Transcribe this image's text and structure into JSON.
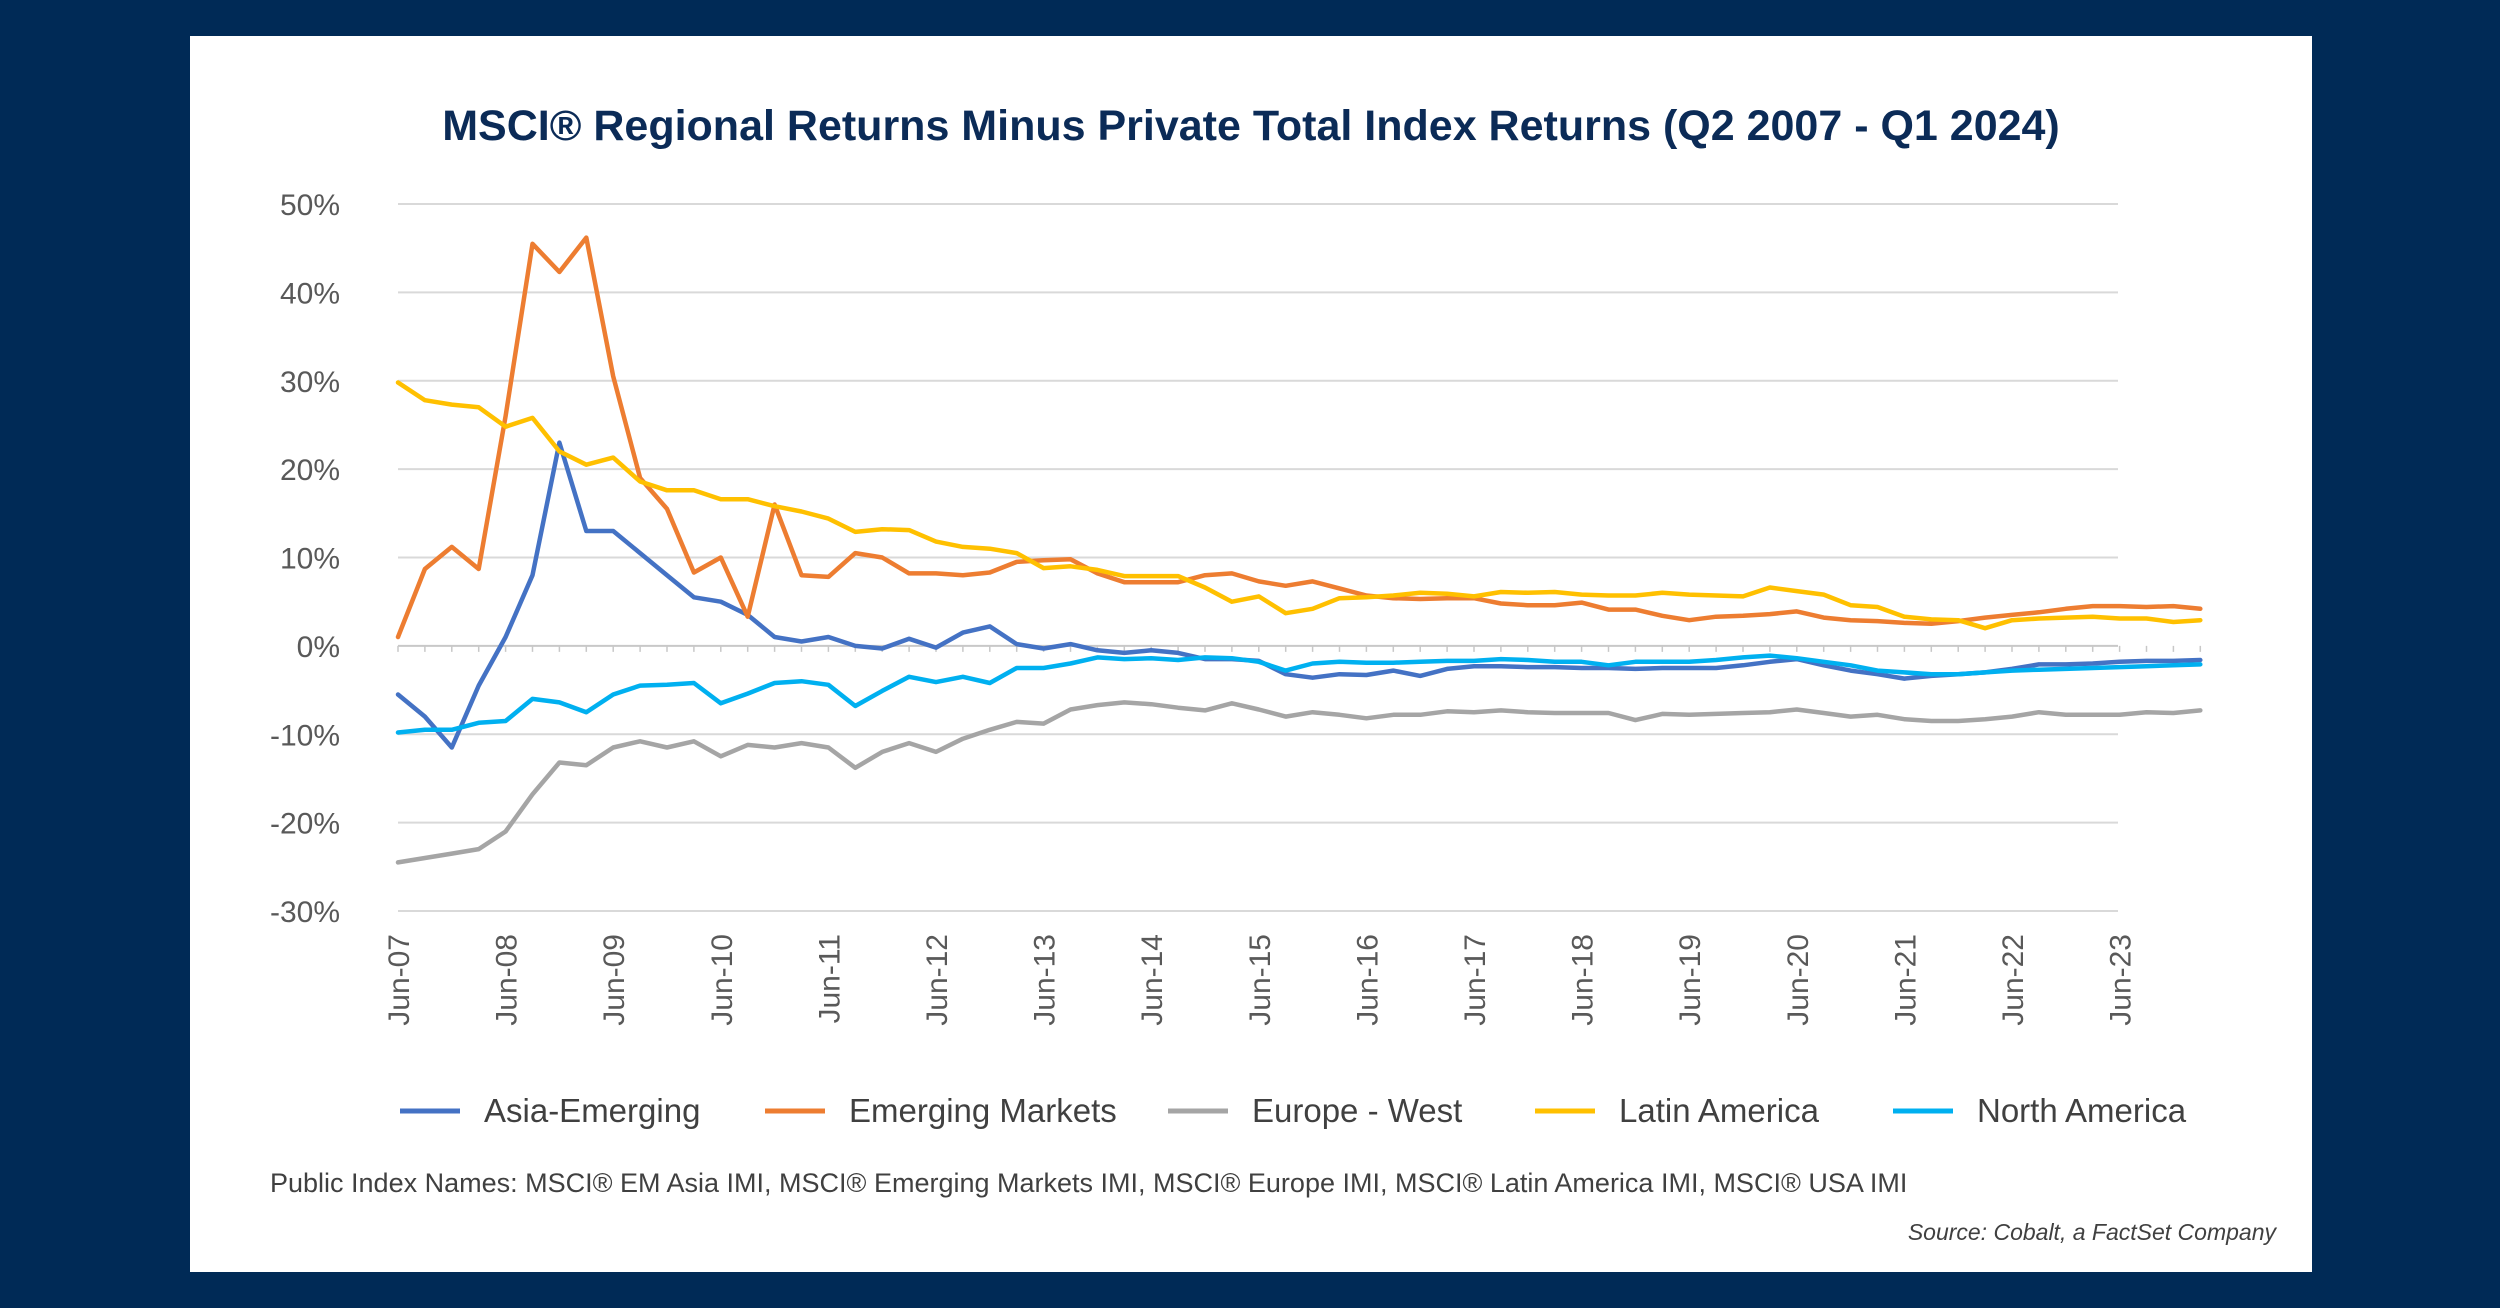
{
  "chart_data": {
    "type": "line",
    "title": "MSCI® Regional Returns Minus Private Total Index Returns (Q2 2007 - Q1 2024)",
    "xlabel": "",
    "ylabel": "",
    "ylim": [
      -30,
      50
    ],
    "y_ticks": [
      {
        "value": 50,
        "label": "50%"
      },
      {
        "value": 40,
        "label": "40%"
      },
      {
        "value": 30,
        "label": "30%"
      },
      {
        "value": 20,
        "label": "20%"
      },
      {
        "value": 10,
        "label": "10%"
      },
      {
        "value": 0,
        "label": "0%"
      },
      {
        "value": -10,
        "label": "-10%"
      },
      {
        "value": -20,
        "label": "-20%"
      },
      {
        "value": -30,
        "label": "-30%"
      }
    ],
    "x_tick_labels": [
      {
        "index": 0,
        "label": "Jun-07"
      },
      {
        "index": 4,
        "label": "Jun-08"
      },
      {
        "index": 8,
        "label": "Jun-09"
      },
      {
        "index": 12,
        "label": "Jun-10"
      },
      {
        "index": 16,
        "label": "Jun-11"
      },
      {
        "index": 20,
        "label": "Jun-12"
      },
      {
        "index": 24,
        "label": "Jun-13"
      },
      {
        "index": 28,
        "label": "Jun-14"
      },
      {
        "index": 32,
        "label": "Jun-15"
      },
      {
        "index": 36,
        "label": "Jun-16"
      },
      {
        "index": 40,
        "label": "Jun-17"
      },
      {
        "index": 44,
        "label": "Jun-18"
      },
      {
        "index": 48,
        "label": "Jun-19"
      },
      {
        "index": 52,
        "label": "Jun-20"
      },
      {
        "index": 56,
        "label": "Jun-21"
      },
      {
        "index": 60,
        "label": "Jun-22"
      },
      {
        "index": 64,
        "label": "Jun-23"
      }
    ],
    "n_points": 68,
    "grid": true,
    "legend": "bottom",
    "series": [
      {
        "name": "Asia-Emerging",
        "color": "#4472c4",
        "values": [
          -5.5,
          -8,
          -11.5,
          -4.5,
          1,
          8,
          23,
          13,
          13,
          10.5,
          8,
          5.5,
          5,
          3.5,
          1,
          0.5,
          1,
          0,
          -0.3,
          0.8,
          -0.2,
          1.5,
          2.2,
          0.2,
          -0.3,
          0.2,
          -0.5,
          -0.8,
          -0.5,
          -0.8,
          -1.5,
          -1.5,
          -1.7,
          -3.2,
          -3.6,
          -3.2,
          -3.3,
          -2.8,
          -3.4,
          -2.6,
          -2.3,
          -2.3,
          -2.4,
          -2.4,
          -2.5,
          -2.5,
          -2.6,
          -2.5,
          -2.5,
          -2.5,
          -2.2,
          -1.8,
          -1.5,
          -2.2,
          -2.8,
          -3.2,
          -3.7,
          -3.4,
          -3.2,
          -3.0,
          -2.6,
          -2.1,
          -2.1,
          -2.0,
          -1.8,
          -1.7,
          -1.7,
          -1.6
        ]
      },
      {
        "name": "Emerging Markets",
        "color": "#ed7d31",
        "values": [
          1,
          8.7,
          11.2,
          8.7,
          26,
          45.5,
          42.3,
          46.2,
          30.5,
          19,
          15.5,
          8.3,
          10,
          3.3,
          16,
          8,
          7.8,
          10.5,
          10,
          8.2,
          8.2,
          8,
          8.3,
          9.5,
          9.7,
          9.8,
          8.2,
          7.2,
          7.2,
          7.2,
          8,
          8.2,
          7.3,
          6.8,
          7.3,
          6.5,
          5.7,
          5.4,
          5.3,
          5.4,
          5.4,
          4.8,
          4.6,
          4.6,
          4.9,
          4.1,
          4.1,
          3.4,
          2.9,
          3.3,
          3.4,
          3.6,
          3.9,
          3.2,
          2.9,
          2.8,
          2.6,
          2.5,
          2.8,
          3.2,
          3.5,
          3.8,
          4.2,
          4.5,
          4.5,
          4.4,
          4.5,
          4.2
        ]
      },
      {
        "name": "Europe - West",
        "color": "#a5a5a5",
        "values": [
          -24.5,
          -24,
          -23.5,
          -23,
          -21,
          -16.8,
          -13.2,
          -13.5,
          -11.5,
          -10.8,
          -11.5,
          -10.8,
          -12.5,
          -11.2,
          -11.5,
          -11,
          -11.5,
          -13.8,
          -12,
          -11,
          -12,
          -10.5,
          -9.5,
          -8.6,
          -8.8,
          -7.2,
          -6.7,
          -6.4,
          -6.6,
          -7,
          -7.3,
          -6.5,
          -7.2,
          -8,
          -7.5,
          -7.8,
          -8.2,
          -7.8,
          -7.8,
          -7.4,
          -7.5,
          -7.3,
          -7.5,
          -7.6,
          -7.6,
          -7.6,
          -8.4,
          -7.7,
          -7.8,
          -7.7,
          -7.6,
          -7.5,
          -7.2,
          -7.6,
          -8.0,
          -7.8,
          -8.3,
          -8.5,
          -8.5,
          -8.3,
          -8.0,
          -7.5,
          -7.8,
          -7.8,
          -7.8,
          -7.5,
          -7.6,
          -7.3
        ]
      },
      {
        "name": "Latin America",
        "color": "#ffc000",
        "values": [
          29.8,
          27.8,
          27.3,
          27,
          24.8,
          25.8,
          22,
          20.5,
          21.3,
          18.6,
          17.6,
          17.6,
          16.6,
          16.6,
          15.8,
          15.2,
          14.4,
          12.9,
          13.2,
          13.1,
          11.8,
          11.2,
          11.0,
          10.5,
          8.8,
          9.0,
          8.6,
          7.9,
          7.9,
          7.9,
          6.6,
          5.0,
          5.6,
          3.7,
          4.2,
          5.4,
          5.5,
          5.7,
          6.0,
          5.9,
          5.6,
          6.1,
          6.0,
          6.1,
          5.8,
          5.7,
          5.7,
          6.0,
          5.8,
          5.7,
          5.6,
          6.6,
          6.2,
          5.8,
          4.6,
          4.4,
          3.3,
          3.0,
          2.9,
          2.0,
          2.9,
          3.1,
          3.2,
          3.3,
          3.1,
          3.1,
          2.7,
          2.9
        ]
      },
      {
        "name": "North America",
        "color": "#00b0f0",
        "values": [
          -9.8,
          -9.5,
          -9.5,
          -8.7,
          -8.5,
          -6.0,
          -6.4,
          -7.5,
          -5.5,
          -4.5,
          -4.4,
          -4.2,
          -6.5,
          -5.4,
          -4.2,
          -4.0,
          -4.4,
          -6.8,
          -5.1,
          -3.5,
          -4.1,
          -3.5,
          -4.2,
          -2.5,
          -2.5,
          -2.0,
          -1.3,
          -1.5,
          -1.4,
          -1.6,
          -1.3,
          -1.4,
          -1.8,
          -2.8,
          -2.0,
          -1.8,
          -1.9,
          -1.9,
          -1.8,
          -1.7,
          -1.7,
          -1.5,
          -1.6,
          -1.8,
          -1.8,
          -2.2,
          -1.8,
          -1.8,
          -1.8,
          -1.6,
          -1.3,
          -1.1,
          -1.4,
          -1.8,
          -2.2,
          -2.8,
          -3.0,
          -3.2,
          -3.2,
          -3.0,
          -2.8,
          -2.7,
          -2.6,
          -2.5,
          -2.4,
          -2.3,
          -2.2,
          -2.1
        ]
      }
    ]
  },
  "footnote": "Public Index Names: MSCI® EM Asia IMI, MSCI® Emerging Markets IMI, MSCI® Europe IMI, MSCI® Latin America IMI, MSCI® USA IMI",
  "source": "Source: Cobalt, a FactSet Company"
}
